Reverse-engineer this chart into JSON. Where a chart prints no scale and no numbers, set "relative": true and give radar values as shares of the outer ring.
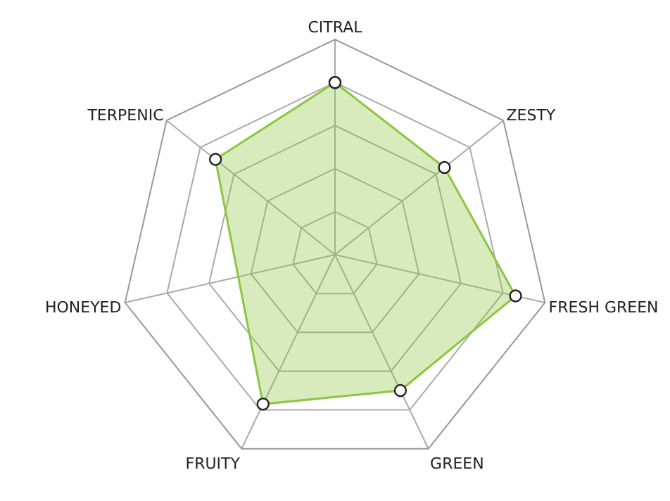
{
  "chart_data": {
    "type": "radar",
    "relative": true,
    "categories": [
      "CITRAL",
      "ZESTY",
      "FRESH GREEN",
      "GREEN",
      "FRUITY",
      "HONEYED",
      "TERPENIC"
    ],
    "series": [
      {
        "color": "#8cc63f",
        "values": [
          0.8,
          0.65,
          0.86,
          0.7,
          0.77,
          null,
          0.71
        ]
      }
    ],
    "grid": true,
    "marker": "circle"
  }
}
